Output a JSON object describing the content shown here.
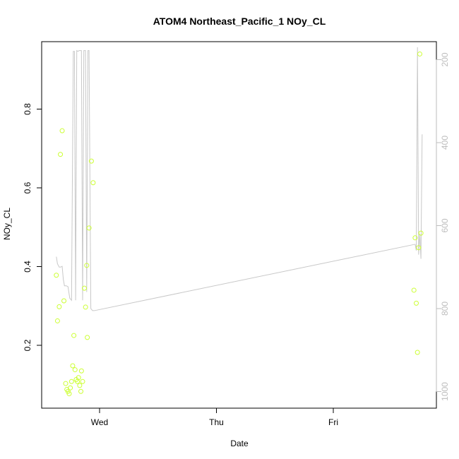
{
  "chart_data": {
    "type": "scatter",
    "title": "ATOM4 Northeast_Pacific_1 NOy_CL",
    "xlabel": "Date",
    "ylabel": "NOy_CL",
    "x_ticks": [
      "Wed",
      "Thu",
      "Fri"
    ],
    "y_ticks": [
      "0.2",
      "0.4",
      "0.6",
      "0.8"
    ],
    "y_right_ticks": [
      "200",
      "400",
      "600",
      "800",
      "1000"
    ],
    "ylim": [
      0.055,
      0.985
    ],
    "y_right_lim": [
      1015,
      160
    ],
    "xlim_days": [
      -0.4,
      2.75
    ],
    "grid": false,
    "point_color": "#ccff33",
    "line_color": "#c8c8c8",
    "series": [
      {
        "type": "scatter",
        "points": [
          {
            "x": -0.37,
            "y": 0.378
          },
          {
            "x": -0.36,
            "y": 0.262
          },
          {
            "x": -0.345,
            "y": 0.298
          },
          {
            "x": -0.335,
            "y": 0.685
          },
          {
            "x": -0.32,
            "y": 0.745
          },
          {
            "x": -0.305,
            "y": 0.313
          },
          {
            "x": -0.29,
            "y": 0.103
          },
          {
            "x": -0.28,
            "y": 0.088
          },
          {
            "x": -0.27,
            "y": 0.083
          },
          {
            "x": -0.26,
            "y": 0.077
          },
          {
            "x": -0.25,
            "y": 0.092
          },
          {
            "x": -0.24,
            "y": 0.108
          },
          {
            "x": -0.23,
            "y": 0.148
          },
          {
            "x": -0.22,
            "y": 0.225
          },
          {
            "x": -0.21,
            "y": 0.138
          },
          {
            "x": -0.2,
            "y": 0.113
          },
          {
            "x": -0.19,
            "y": 0.108
          },
          {
            "x": -0.18,
            "y": 0.118
          },
          {
            "x": -0.17,
            "y": 0.098
          },
          {
            "x": -0.16,
            "y": 0.083
          },
          {
            "x": -0.155,
            "y": 0.135
          },
          {
            "x": -0.145,
            "y": 0.108
          },
          {
            "x": -0.13,
            "y": 0.345
          },
          {
            "x": -0.12,
            "y": 0.297
          },
          {
            "x": -0.11,
            "y": 0.403
          },
          {
            "x": -0.105,
            "y": 0.22
          },
          {
            "x": -0.09,
            "y": 0.498
          },
          {
            "x": -0.07,
            "y": 0.668
          },
          {
            "x": -0.055,
            "y": 0.613
          },
          {
            "x": 2.69,
            "y": 0.34
          },
          {
            "x": 2.7,
            "y": 0.473
          },
          {
            "x": 2.71,
            "y": 0.307
          },
          {
            "x": 2.72,
            "y": 0.182
          },
          {
            "x": 2.73,
            "y": 0.448
          },
          {
            "x": 2.74,
            "y": 0.94
          },
          {
            "x": 2.75,
            "y": 0.485
          }
        ]
      },
      {
        "type": "line",
        "axis": "right",
        "points": [
          {
            "x": -0.37,
            "y": 675
          },
          {
            "x": -0.36,
            "y": 692
          },
          {
            "x": -0.345,
            "y": 700
          },
          {
            "x": -0.335,
            "y": 700
          },
          {
            "x": -0.32,
            "y": 698
          },
          {
            "x": -0.31,
            "y": 730
          },
          {
            "x": -0.3,
            "y": 745
          },
          {
            "x": -0.285,
            "y": 745
          },
          {
            "x": -0.27,
            "y": 747
          },
          {
            "x": -0.255,
            "y": 775
          },
          {
            "x": -0.24,
            "y": 780
          },
          {
            "x": -0.225,
            "y": 180
          },
          {
            "x": -0.215,
            "y": 180
          },
          {
            "x": -0.205,
            "y": 780
          },
          {
            "x": -0.195,
            "y": 178
          },
          {
            "x": -0.185,
            "y": 180
          },
          {
            "x": -0.175,
            "y": 178
          },
          {
            "x": -0.165,
            "y": 178
          },
          {
            "x": -0.155,
            "y": 178
          },
          {
            "x": -0.145,
            "y": 780
          },
          {
            "x": -0.135,
            "y": 178
          },
          {
            "x": -0.12,
            "y": 178
          },
          {
            "x": -0.11,
            "y": 760
          },
          {
            "x": -0.1,
            "y": 178
          },
          {
            "x": -0.09,
            "y": 178
          },
          {
            "x": -0.075,
            "y": 800
          },
          {
            "x": -0.06,
            "y": 805
          },
          {
            "x": -0.045,
            "y": 805
          },
          {
            "x": 2.7,
            "y": 645
          },
          {
            "x": 2.71,
            "y": 660
          },
          {
            "x": 2.72,
            "y": 170
          },
          {
            "x": 2.73,
            "y": 670
          },
          {
            "x": 2.74,
            "y": 620
          },
          {
            "x": 2.75,
            "y": 680
          },
          {
            "x": 2.76,
            "y": 380
          }
        ]
      }
    ]
  }
}
